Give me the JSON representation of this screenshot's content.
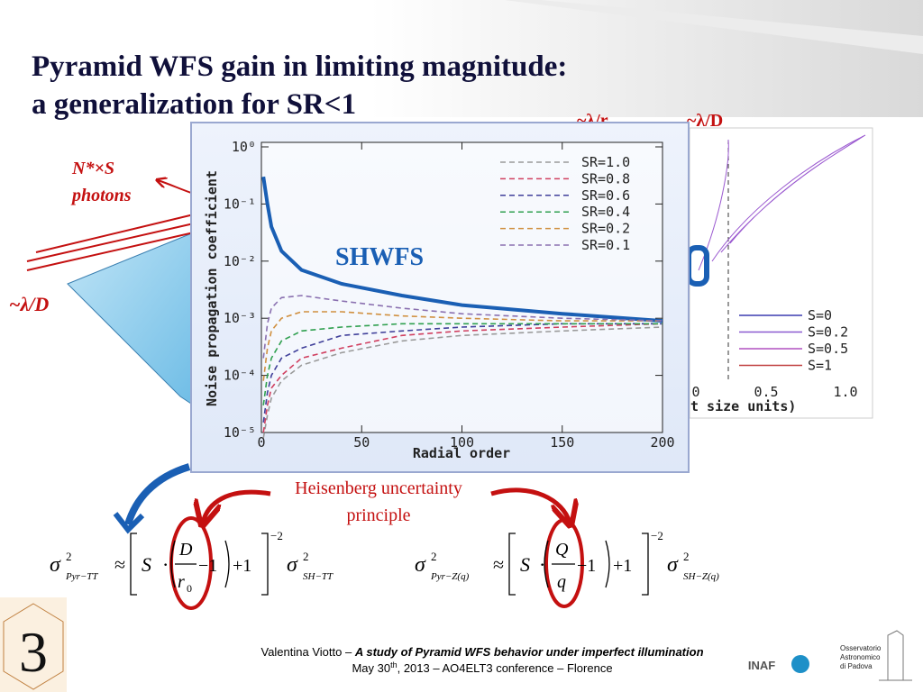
{
  "title": [
    "Pyramid WFS gain in limiting magnitude:",
    "a generalization for SR<1"
  ],
  "annotations": {
    "lambda_r": "~λ/r",
    "lambda_d_top": "~λ/D",
    "photons": [
      "N*×S",
      "photons"
    ],
    "lambda_d_left": "~λ/D",
    "heisenberg": [
      "Heisenberg uncertainty",
      "principle"
    ]
  },
  "background_plot": {
    "legend": [
      "S=0",
      "S=0.2",
      "S=0.5",
      "S=1"
    ],
    "legend_colors": [
      "#3b3bb0",
      "#8a5ad0",
      "#b050c0",
      "#c04040"
    ],
    "xtick_labels": [
      "0",
      "0.5",
      "1.0"
    ],
    "xlabel_fragment": "t size units)"
  },
  "chart_data": {
    "type": "line",
    "xlabel": "Radial order",
    "ylabel": "Noise propagation coefficient",
    "xlim": [
      0,
      200
    ],
    "xticks": [
      0,
      50,
      100,
      150,
      200
    ],
    "ylim": [
      1e-05,
      1
    ],
    "log_y": true,
    "yticks": [
      {
        "value": 1,
        "label": "10⁰"
      },
      {
        "value": 0.1,
        "label": "10⁻¹"
      },
      {
        "value": 0.01,
        "label": "10⁻²"
      },
      {
        "value": 0.001,
        "label": "10⁻³"
      },
      {
        "value": 0.0001,
        "label": "10⁻⁴"
      },
      {
        "value": 1e-05,
        "label": "10⁻⁵"
      }
    ],
    "legend_position": "upper right",
    "x": [
      1,
      3,
      5,
      10,
      20,
      40,
      70,
      100,
      150,
      200
    ],
    "series": [
      {
        "name": "SHWFS",
        "color": "#1a5fb4",
        "dashed": false,
        "values": [
          0.3,
          0.1,
          0.04,
          0.015,
          0.007,
          0.004,
          0.0025,
          0.0017,
          0.0012,
          0.0009
        ]
      },
      {
        "name": "SR=1.0",
        "color": "#9a9a9a",
        "dashed": true,
        "values": [
          8e-06,
          2e-05,
          4e-05,
          8e-05,
          0.00015,
          0.00025,
          0.0004,
          0.0005,
          0.0006,
          0.0007
        ]
      },
      {
        "name": "SR=0.8",
        "color": "#d04060",
        "dashed": true,
        "values": [
          1e-05,
          3e-05,
          6e-05,
          0.0001,
          0.0002,
          0.0003,
          0.0005,
          0.0006,
          0.0007,
          0.0008
        ]
      },
      {
        "name": "SR=0.6",
        "color": "#40409a",
        "dashed": true,
        "values": [
          1.5e-05,
          5e-05,
          0.0001,
          0.0002,
          0.0003,
          0.0005,
          0.0006,
          0.0007,
          0.0008,
          0.0008
        ]
      },
      {
        "name": "SR=0.4",
        "color": "#30a050",
        "dashed": true,
        "values": [
          3e-05,
          0.0001,
          0.0002,
          0.0004,
          0.0006,
          0.0007,
          0.0008,
          0.0008,
          0.0008,
          0.0008
        ]
      },
      {
        "name": "SR=0.2",
        "color": "#d09040",
        "dashed": true,
        "values": [
          8e-05,
          0.0003,
          0.0006,
          0.001,
          0.0013,
          0.0013,
          0.0011,
          0.001,
          0.0009,
          0.0009
        ]
      },
      {
        "name": "SR=0.1",
        "color": "#8a70b0",
        "dashed": true,
        "values": [
          0.0002,
          0.0008,
          0.0015,
          0.0023,
          0.0025,
          0.002,
          0.0015,
          0.0012,
          0.001,
          0.0009
        ]
      }
    ]
  },
  "formulas": [
    {
      "tokens": [
        "σ",
        "2",
        "Pyr−TT",
        "≈",
        "S",
        "·",
        "D",
        "r",
        "0",
        "−1",
        "+1",
        "−2",
        "σ",
        "2",
        "SH−TT"
      ]
    },
    {
      "tokens": [
        "σ",
        "2",
        "Pyr−Z(q)",
        "≈",
        "S",
        "·",
        "Q",
        "q",
        "−1",
        "+1",
        "−2",
        "σ",
        "2",
        "SH−Z(q)"
      ]
    }
  ],
  "footer": {
    "author": "Valentina Viotto",
    "dash": " – ",
    "talk": "A study of Pyramid WFS behavior under imperfect illumination",
    "date_a": "May 30",
    "date_sup": "th",
    "date_b": ", 2013 – AO4ELT3 conference – Florence"
  },
  "logos": {
    "inaf": "INAF",
    "padova": [
      "Osservatorio",
      "Astronomico",
      "di Padova"
    ],
    "three": "3"
  }
}
